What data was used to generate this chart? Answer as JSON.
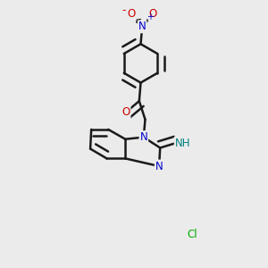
{
  "background_color": "#ebebeb",
  "bond_color": "#1a1a1a",
  "bond_width": 1.8,
  "atom_colors": {
    "N": "#0000cc",
    "O": "#cc0000",
    "Cl": "#00aa00",
    "H": "#008080"
  },
  "font_size_atom": 8.5
}
